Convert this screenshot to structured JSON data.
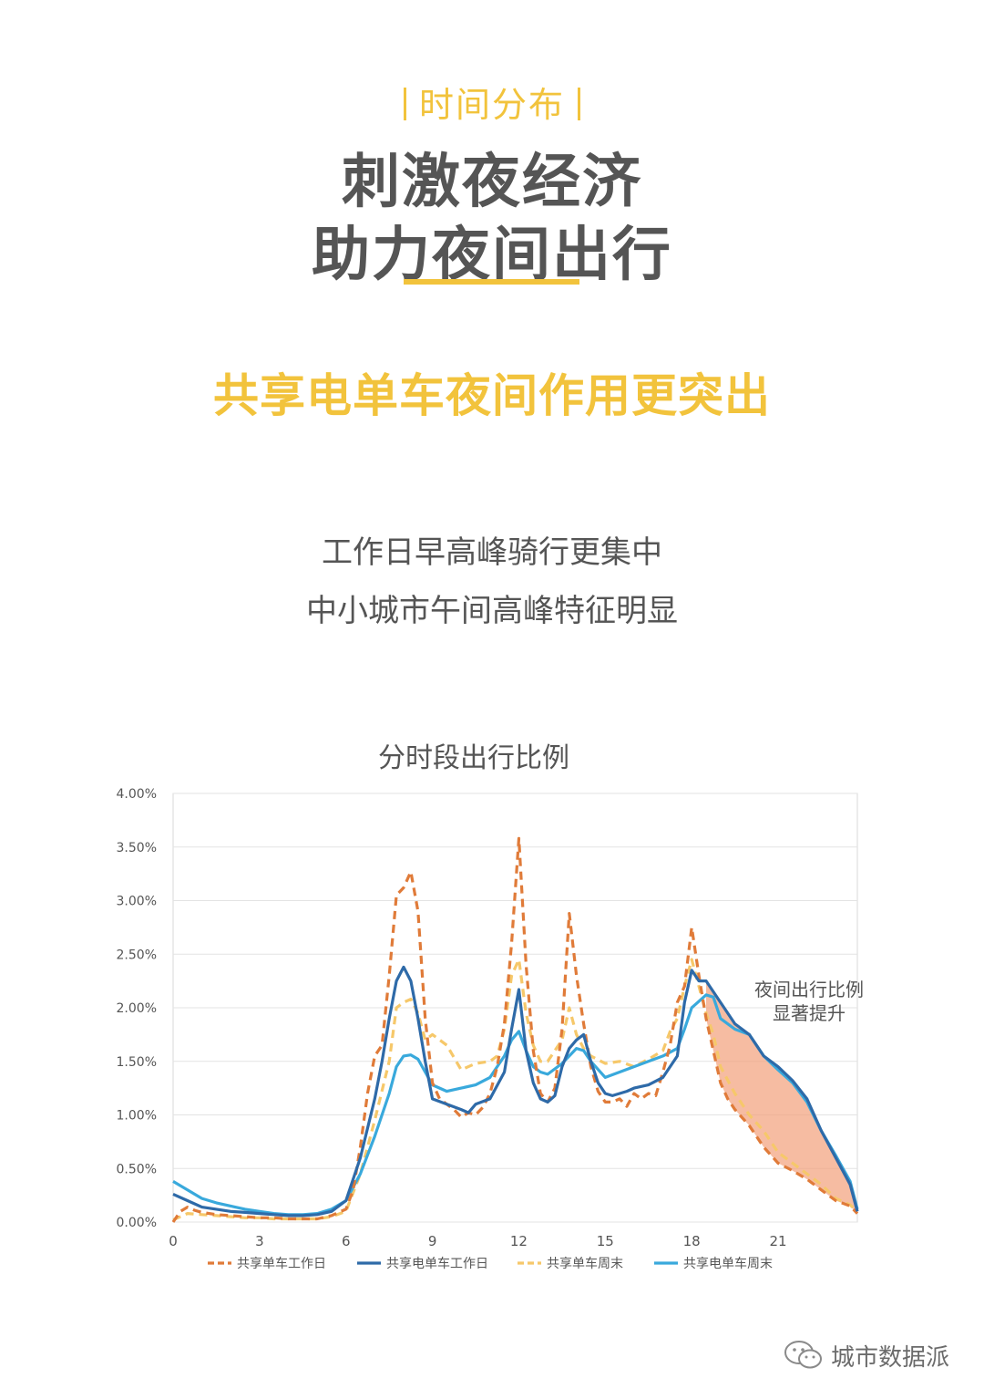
{
  "header": {
    "tag": "时间分布",
    "title_line1": "刺激夜经济",
    "title_line2": "助力夜间出行",
    "subtitle": "共享电单车夜间作用更突出",
    "desc_line1": "工作日早高峰骑行更集中",
    "desc_line2": "中小城市午间高峰特征明显"
  },
  "colors": {
    "accent": "#f2c33c",
    "text": "#555555",
    "series_bike_weekday": "#e07b39",
    "series_ebike_weekday": "#2e6aa8",
    "series_bike_weekend": "#f6c86a",
    "series_ebike_weekend": "#39a9dc",
    "night_band": "#f2a07a"
  },
  "annotation": {
    "line1": "夜间出行比例",
    "line2": "显著提升"
  },
  "watermark": {
    "text": "城市数据派",
    "icon": "wechat-icon"
  },
  "chart_data": {
    "type": "line",
    "title": "分时段出行比例",
    "xlabel": "",
    "ylabel": "",
    "x_ticks": [
      "0",
      "3",
      "6",
      "9",
      "12",
      "15",
      "18",
      "21"
    ],
    "y_ticks": [
      "0.00%",
      "0.50%",
      "1.00%",
      "1.50%",
      "2.00%",
      "2.50%",
      "3.00%",
      "3.50%",
      "4.00%"
    ],
    "xlim": [
      0,
      23.75
    ],
    "ylim": [
      0,
      4.0
    ],
    "grid": true,
    "legend": "bottom",
    "series": [
      {
        "name": "共享单车工作日",
        "style": "dashed",
        "points": [
          [
            0,
            0.0
          ],
          [
            0.25,
            0.1
          ],
          [
            0.5,
            0.14
          ],
          [
            0.75,
            0.11
          ],
          [
            1,
            0.09
          ],
          [
            1.5,
            0.07
          ],
          [
            2,
            0.06
          ],
          [
            2.5,
            0.05
          ],
          [
            3,
            0.04
          ],
          [
            3.5,
            0.04
          ],
          [
            4,
            0.03
          ],
          [
            4.5,
            0.03
          ],
          [
            5,
            0.03
          ],
          [
            5.5,
            0.06
          ],
          [
            6,
            0.12
          ],
          [
            6.25,
            0.3
          ],
          [
            6.5,
            0.7
          ],
          [
            6.75,
            1.2
          ],
          [
            7,
            1.55
          ],
          [
            7.25,
            1.65
          ],
          [
            7.5,
            2.3
          ],
          [
            7.75,
            3.05
          ],
          [
            8,
            3.12
          ],
          [
            8.25,
            3.27
          ],
          [
            8.5,
            2.9
          ],
          [
            8.75,
            1.9
          ],
          [
            9,
            1.3
          ],
          [
            9.25,
            1.15
          ],
          [
            9.5,
            1.1
          ],
          [
            9.75,
            1.05
          ],
          [
            10,
            0.98
          ],
          [
            10.25,
            1.02
          ],
          [
            10.5,
            1.0
          ],
          [
            10.75,
            1.07
          ],
          [
            11,
            1.2
          ],
          [
            11.25,
            1.45
          ],
          [
            11.5,
            1.85
          ],
          [
            11.75,
            2.6
          ],
          [
            12,
            3.58
          ],
          [
            12.25,
            2.4
          ],
          [
            12.5,
            1.6
          ],
          [
            12.75,
            1.2
          ],
          [
            13,
            1.12
          ],
          [
            13.25,
            1.25
          ],
          [
            13.5,
            1.8
          ],
          [
            13.75,
            2.88
          ],
          [
            14,
            2.3
          ],
          [
            14.25,
            1.85
          ],
          [
            14.5,
            1.45
          ],
          [
            14.75,
            1.22
          ],
          [
            15,
            1.12
          ],
          [
            15.25,
            1.12
          ],
          [
            15.5,
            1.15
          ],
          [
            15.75,
            1.08
          ],
          [
            16,
            1.2
          ],
          [
            16.25,
            1.15
          ],
          [
            16.5,
            1.2
          ],
          [
            16.75,
            1.18
          ],
          [
            17,
            1.4
          ],
          [
            17.25,
            1.65
          ],
          [
            17.5,
            2.05
          ],
          [
            17.75,
            2.2
          ],
          [
            18,
            2.75
          ],
          [
            18.25,
            2.3
          ],
          [
            18.5,
            1.9
          ],
          [
            18.75,
            1.6
          ],
          [
            19,
            1.3
          ],
          [
            19.25,
            1.15
          ],
          [
            19.5,
            1.05
          ],
          [
            20,
            0.9
          ],
          [
            20.5,
            0.7
          ],
          [
            21,
            0.55
          ],
          [
            21.5,
            0.48
          ],
          [
            22,
            0.4
          ],
          [
            22.5,
            0.3
          ],
          [
            23,
            0.2
          ],
          [
            23.5,
            0.15
          ],
          [
            23.75,
            0.08
          ]
        ]
      },
      {
        "name": "共享电单车工作日",
        "style": "solid",
        "points": [
          [
            0,
            0.26
          ],
          [
            0.5,
            0.2
          ],
          [
            1,
            0.14
          ],
          [
            1.5,
            0.12
          ],
          [
            2,
            0.1
          ],
          [
            2.5,
            0.09
          ],
          [
            3,
            0.08
          ],
          [
            3.5,
            0.07
          ],
          [
            4,
            0.06
          ],
          [
            4.5,
            0.06
          ],
          [
            5,
            0.07
          ],
          [
            5.5,
            0.1
          ],
          [
            6,
            0.2
          ],
          [
            6.5,
            0.6
          ],
          [
            7,
            1.15
          ],
          [
            7.25,
            1.5
          ],
          [
            7.5,
            1.9
          ],
          [
            7.75,
            2.25
          ],
          [
            8,
            2.38
          ],
          [
            8.25,
            2.25
          ],
          [
            8.5,
            1.9
          ],
          [
            8.75,
            1.5
          ],
          [
            9,
            1.15
          ],
          [
            9.5,
            1.1
          ],
          [
            10,
            1.05
          ],
          [
            10.25,
            1.02
          ],
          [
            10.5,
            1.1
          ],
          [
            11,
            1.15
          ],
          [
            11.5,
            1.4
          ],
          [
            11.75,
            1.8
          ],
          [
            12,
            2.17
          ],
          [
            12.25,
            1.6
          ],
          [
            12.5,
            1.3
          ],
          [
            12.75,
            1.15
          ],
          [
            13,
            1.12
          ],
          [
            13.25,
            1.18
          ],
          [
            13.5,
            1.45
          ],
          [
            13.75,
            1.62
          ],
          [
            14,
            1.7
          ],
          [
            14.25,
            1.75
          ],
          [
            14.5,
            1.5
          ],
          [
            14.75,
            1.3
          ],
          [
            15,
            1.2
          ],
          [
            15.25,
            1.18
          ],
          [
            15.5,
            1.2
          ],
          [
            15.75,
            1.22
          ],
          [
            16,
            1.25
          ],
          [
            16.5,
            1.28
          ],
          [
            17,
            1.35
          ],
          [
            17.25,
            1.45
          ],
          [
            17.5,
            1.55
          ],
          [
            17.75,
            2.05
          ],
          [
            18,
            2.35
          ],
          [
            18.25,
            2.25
          ],
          [
            18.5,
            2.25
          ],
          [
            18.75,
            2.15
          ],
          [
            19,
            2.05
          ],
          [
            19.5,
            1.85
          ],
          [
            20,
            1.75
          ],
          [
            20.5,
            1.55
          ],
          [
            21,
            1.45
          ],
          [
            21.5,
            1.32
          ],
          [
            22,
            1.15
          ],
          [
            22.5,
            0.85
          ],
          [
            23,
            0.6
          ],
          [
            23.5,
            0.35
          ],
          [
            23.75,
            0.1
          ]
        ]
      },
      {
        "name": "共享单车周末",
        "style": "dashed",
        "points": [
          [
            0,
            0.02
          ],
          [
            0.5,
            0.08
          ],
          [
            1,
            0.07
          ],
          [
            1.5,
            0.06
          ],
          [
            2,
            0.05
          ],
          [
            2.5,
            0.04
          ],
          [
            3,
            0.04
          ],
          [
            3.5,
            0.03
          ],
          [
            4,
            0.03
          ],
          [
            4.5,
            0.03
          ],
          [
            5,
            0.03
          ],
          [
            5.5,
            0.05
          ],
          [
            6,
            0.1
          ],
          [
            6.5,
            0.45
          ],
          [
            7,
            0.95
          ],
          [
            7.5,
            1.5
          ],
          [
            7.75,
            2.0
          ],
          [
            8,
            2.05
          ],
          [
            8.25,
            2.08
          ],
          [
            8.5,
            1.95
          ],
          [
            8.75,
            1.7
          ],
          [
            9,
            1.75
          ],
          [
            9.5,
            1.65
          ],
          [
            10,
            1.42
          ],
          [
            10.5,
            1.48
          ],
          [
            11,
            1.5
          ],
          [
            11.25,
            1.55
          ],
          [
            11.5,
            1.8
          ],
          [
            11.75,
            2.3
          ],
          [
            12,
            2.45
          ],
          [
            12.25,
            1.95
          ],
          [
            12.5,
            1.65
          ],
          [
            12.75,
            1.5
          ],
          [
            13,
            1.5
          ],
          [
            13.25,
            1.6
          ],
          [
            13.5,
            1.7
          ],
          [
            13.75,
            2.0
          ],
          [
            14,
            1.75
          ],
          [
            14.25,
            1.62
          ],
          [
            14.5,
            1.55
          ],
          [
            15,
            1.48
          ],
          [
            15.5,
            1.5
          ],
          [
            16,
            1.45
          ],
          [
            16.5,
            1.52
          ],
          [
            17,
            1.6
          ],
          [
            17.25,
            1.78
          ],
          [
            17.5,
            1.9
          ],
          [
            17.75,
            2.2
          ],
          [
            18,
            2.45
          ],
          [
            18.25,
            2.2
          ],
          [
            18.5,
            1.95
          ],
          [
            18.75,
            1.75
          ],
          [
            19,
            1.45
          ],
          [
            19.5,
            1.2
          ],
          [
            20,
            1.0
          ],
          [
            20.5,
            0.85
          ],
          [
            21,
            0.65
          ],
          [
            21.5,
            0.55
          ],
          [
            22,
            0.45
          ],
          [
            22.5,
            0.35
          ],
          [
            23,
            0.22
          ],
          [
            23.5,
            0.16
          ],
          [
            23.75,
            0.1
          ]
        ]
      },
      {
        "name": "共享电单车周末",
        "style": "solid",
        "points": [
          [
            0,
            0.38
          ],
          [
            0.5,
            0.3
          ],
          [
            1,
            0.22
          ],
          [
            1.5,
            0.18
          ],
          [
            2,
            0.15
          ],
          [
            2.5,
            0.12
          ],
          [
            3,
            0.1
          ],
          [
            3.5,
            0.08
          ],
          [
            4,
            0.07
          ],
          [
            4.5,
            0.07
          ],
          [
            5,
            0.08
          ],
          [
            5.5,
            0.12
          ],
          [
            6,
            0.2
          ],
          [
            6.5,
            0.45
          ],
          [
            7,
            0.8
          ],
          [
            7.5,
            1.2
          ],
          [
            7.75,
            1.45
          ],
          [
            8,
            1.55
          ],
          [
            8.25,
            1.56
          ],
          [
            8.5,
            1.52
          ],
          [
            8.75,
            1.4
          ],
          [
            9,
            1.28
          ],
          [
            9.5,
            1.22
          ],
          [
            10,
            1.25
          ],
          [
            10.5,
            1.28
          ],
          [
            11,
            1.35
          ],
          [
            11.5,
            1.55
          ],
          [
            11.75,
            1.7
          ],
          [
            12,
            1.78
          ],
          [
            12.25,
            1.6
          ],
          [
            12.5,
            1.45
          ],
          [
            12.75,
            1.4
          ],
          [
            13,
            1.38
          ],
          [
            13.5,
            1.48
          ],
          [
            14,
            1.62
          ],
          [
            14.25,
            1.6
          ],
          [
            14.5,
            1.5
          ],
          [
            15,
            1.35
          ],
          [
            15.5,
            1.4
          ],
          [
            16,
            1.45
          ],
          [
            16.5,
            1.5
          ],
          [
            17,
            1.55
          ],
          [
            17.5,
            1.62
          ],
          [
            17.75,
            1.8
          ],
          [
            18,
            2.0
          ],
          [
            18.5,
            2.12
          ],
          [
            18.75,
            2.1
          ],
          [
            19,
            1.9
          ],
          [
            19.5,
            1.8
          ],
          [
            20,
            1.75
          ],
          [
            20.5,
            1.55
          ],
          [
            21,
            1.42
          ],
          [
            21.5,
            1.3
          ],
          [
            22,
            1.12
          ],
          [
            22.5,
            0.85
          ],
          [
            23,
            0.62
          ],
          [
            23.5,
            0.38
          ],
          [
            23.75,
            0.12
          ]
        ]
      }
    ]
  }
}
